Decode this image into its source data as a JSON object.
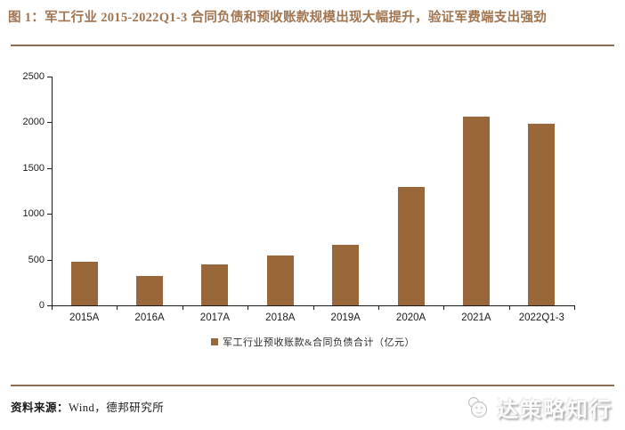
{
  "header": {
    "title": "图 1：军工行业 2015-2022Q1-3 合同负债和预收账款规模出现大幅提升，验证军费端支出强劲"
  },
  "chart_data": {
    "type": "bar",
    "categories": [
      "2015A",
      "2016A",
      "2017A",
      "2018A",
      "2019A",
      "2020A",
      "2021A",
      "2022Q1-3"
    ],
    "values": [
      475,
      320,
      450,
      545,
      665,
      1290,
      2060,
      1985
    ],
    "title": "",
    "xlabel": "",
    "ylabel": "",
    "ylim": [
      0,
      2500
    ],
    "yticks": [
      0,
      500,
      1000,
      1500,
      2000,
      2500
    ],
    "grid": false,
    "legend": [
      "军工行业预收账款&合同负债合计（亿元）"
    ],
    "legend_position": "bottom",
    "bar_color": "#9A673B"
  },
  "footer": {
    "source_label": "资料来源：",
    "source_text": "Wind，德邦研究所"
  },
  "logo": {
    "text": "达策略知行",
    "icon": "panda-circle-icon"
  },
  "colors": {
    "title_brown": "#A0744F",
    "divider_brown": "#8A6D52",
    "bar_brown": "#9A673B",
    "axis_black": "#1a1a1a",
    "logo_gray": "#a8a8a8"
  }
}
